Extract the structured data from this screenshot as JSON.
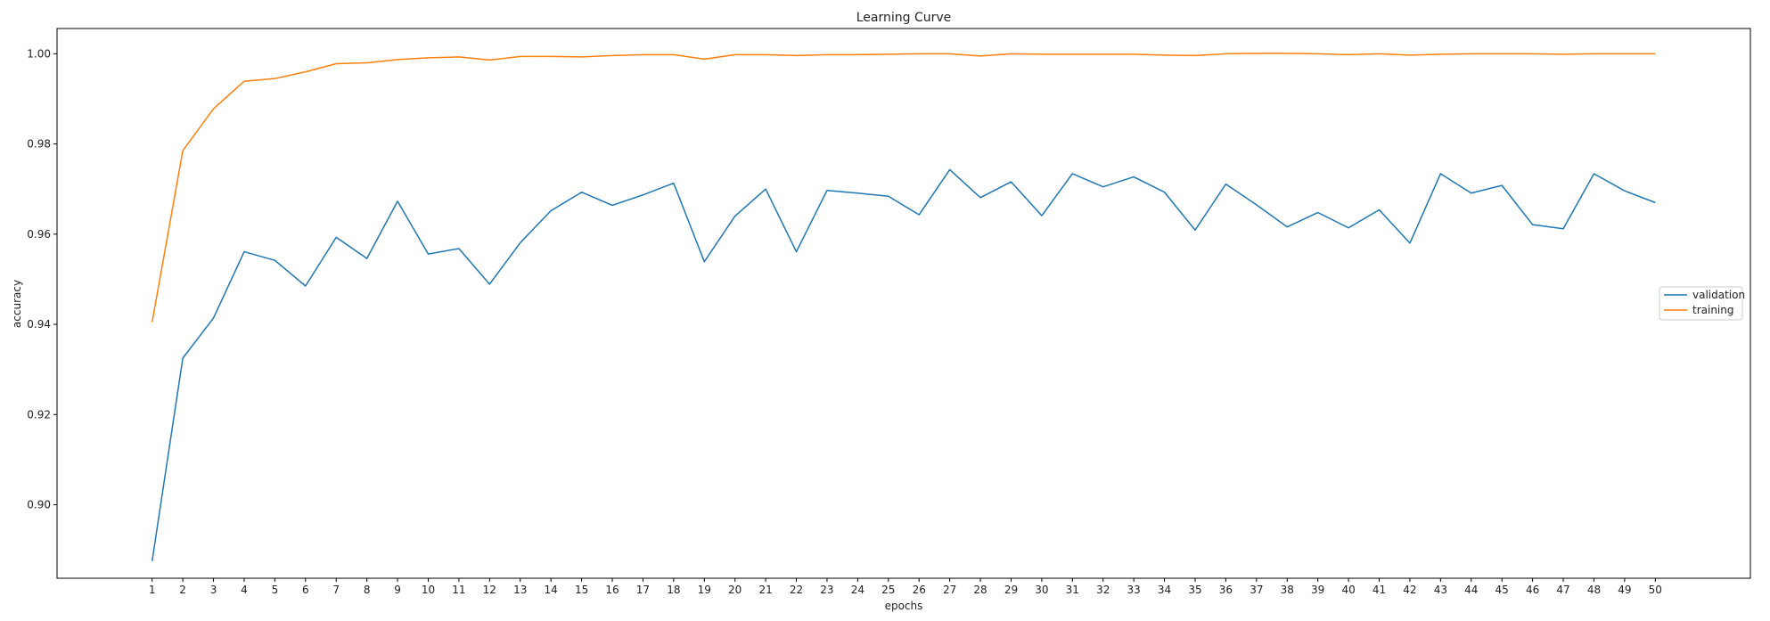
{
  "chart_data": {
    "type": "line",
    "title": "Learning Curve",
    "xlabel": "epochs",
    "ylabel": "accuracy",
    "x": [
      1,
      2,
      3,
      4,
      5,
      6,
      7,
      8,
      9,
      10,
      11,
      12,
      13,
      14,
      15,
      16,
      17,
      18,
      19,
      20,
      21,
      22,
      23,
      24,
      25,
      26,
      27,
      28,
      29,
      30,
      31,
      32,
      33,
      34,
      35,
      36,
      37,
      38,
      39,
      40,
      41,
      42,
      43,
      44,
      45,
      46,
      47,
      48,
      49,
      50
    ],
    "xlim": [
      -2.1,
      53.1
    ],
    "ylim": [
      0.8837,
      1.0056
    ],
    "yticks": [
      0.9,
      0.92,
      0.94,
      0.96,
      0.98,
      1.0
    ],
    "ytick_labels": [
      "0.90",
      "0.92",
      "0.94",
      "0.96",
      "0.98",
      "1.00"
    ],
    "grid": false,
    "legend_position": "center-right",
    "series": [
      {
        "name": "validation",
        "color": "#1f77b4",
        "values": [
          0.8875,
          0.9325,
          0.9414,
          0.9561,
          0.9542,
          0.9485,
          0.9593,
          0.9546,
          0.9673,
          0.9556,
          0.9568,
          0.9489,
          0.9581,
          0.9652,
          0.9693,
          0.9664,
          0.9687,
          0.9713,
          0.9539,
          0.964,
          0.97,
          0.9561,
          0.9697,
          0.9691,
          0.9684,
          0.9643,
          0.9743,
          0.9681,
          0.9716,
          0.9641,
          0.9734,
          0.9705,
          0.9727,
          0.9693,
          0.9609,
          0.9711,
          0.9665,
          0.9616,
          0.9648,
          0.9614,
          0.9654,
          0.958,
          0.9734,
          0.9691,
          0.9708,
          0.9621,
          0.9612,
          0.9734,
          0.9696,
          0.967
        ]
      },
      {
        "name": "training",
        "color": "#ff7f0e",
        "values": [
          0.9405,
          0.9785,
          0.9878,
          0.9939,
          0.9945,
          0.996,
          0.9978,
          0.998,
          0.9987,
          0.9991,
          0.9993,
          0.9986,
          0.9994,
          0.9994,
          0.9993,
          0.9996,
          0.9998,
          0.9998,
          0.9988,
          0.9998,
          0.9998,
          0.9996,
          0.9998,
          0.9998,
          0.9999,
          1.0,
          1.0,
          0.9995,
          1.0,
          0.9999,
          0.9999,
          0.9999,
          0.9999,
          0.9997,
          0.9996,
          1.0,
          1.0001,
          1.0001,
          1.0,
          0.9998,
          1.0,
          0.9997,
          0.9999,
          1.0,
          1.0,
          1.0,
          0.9999,
          1.0,
          1.0,
          1.0
        ]
      }
    ]
  }
}
